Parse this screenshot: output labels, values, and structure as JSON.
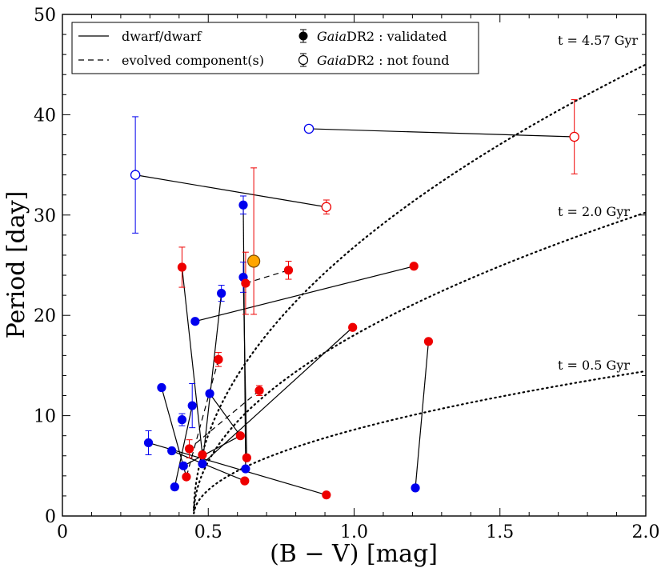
{
  "chart_data": {
    "type": "scatter",
    "xlabel": "(B − V) [mag]",
    "ylabel": "Period [day]",
    "xlim": [
      0,
      2.0
    ],
    "ylim": [
      0,
      50
    ],
    "xticks": [
      "0",
      "0.5",
      "1.0",
      "1.5",
      "2.0"
    ],
    "yticks": [
      "0",
      "10",
      "20",
      "30",
      "40",
      "50"
    ],
    "grid": false,
    "legend": {
      "placement": "top-left",
      "entries": [
        {
          "style": "solid",
          "label": "dwarf/dwarf"
        },
        {
          "style": "dashed",
          "label": "evolved component(s)"
        },
        {
          "style": "filled-marker",
          "italic": "Gaia",
          "label": "DR2 : validated"
        },
        {
          "style": "open-marker",
          "italic": "Gaia",
          "label": "DR2 : not found"
        }
      ]
    },
    "colors": {
      "blue": "#0000ee",
      "red": "#ee0000",
      "sun_fill": "#ffa500",
      "sun_edge": "#7a4a00"
    },
    "isochrones": [
      {
        "label": "t = 4.57 Gyr",
        "k": 36.15
      },
      {
        "label": "t = 2.0 Gyr",
        "k": 24.3
      },
      {
        "label": "t = 0.5 Gyr",
        "k": 11.6
      }
    ],
    "points": [
      {
        "id": 0,
        "x": 0.25,
        "y": 34.0,
        "color": "blue",
        "open": true,
        "err": 5.8
      },
      {
        "id": 1,
        "x": 0.905,
        "y": 30.8,
        "color": "red",
        "open": true,
        "err": 0.7
      },
      {
        "id": 2,
        "x": 0.845,
        "y": 38.6,
        "color": "blue",
        "open": true,
        "err": 0
      },
      {
        "id": 3,
        "x": 1.755,
        "y": 37.8,
        "color": "red",
        "open": true,
        "err": 3.7
      },
      {
        "id": 4,
        "x": 0.62,
        "y": 31.0,
        "color": "blue",
        "open": false,
        "err": 0.9
      },
      {
        "id": 5,
        "x": 0.628,
        "y": 4.7,
        "color": "blue",
        "open": false,
        "err": 0
      },
      {
        "id": 6,
        "x": 0.62,
        "y": 23.8,
        "color": "blue",
        "open": false,
        "err": 1.5
      },
      {
        "id": 7,
        "x": 0.632,
        "y": 5.8,
        "color": "red",
        "open": false,
        "err": 0
      },
      {
        "id": 8,
        "x": 0.628,
        "y": 23.2,
        "color": "red",
        "open": false,
        "err": 3.1
      },
      {
        "id": 9,
        "x": 0.775,
        "y": 24.5,
        "color": "red",
        "open": false,
        "err": 0.9
      },
      {
        "id": 10,
        "x": 0.545,
        "y": 22.2,
        "color": "blue",
        "open": false,
        "err": 0.8
      },
      {
        "id": 11,
        "x": 0.455,
        "y": 19.4,
        "color": "blue",
        "open": false,
        "err": 0
      },
      {
        "id": 12,
        "x": 1.205,
        "y": 24.9,
        "color": "red",
        "open": false,
        "err": 0
      },
      {
        "id": 13,
        "x": 0.41,
        "y": 24.8,
        "color": "red",
        "open": false,
        "err": 2.0
      },
      {
        "id": 14,
        "x": 0.41,
        "y": 9.6,
        "color": "blue",
        "open": false,
        "err": 0.6
      },
      {
        "id": 15,
        "x": 0.535,
        "y": 15.6,
        "color": "red",
        "open": false,
        "err": 0.7
      },
      {
        "id": 16,
        "x": 0.48,
        "y": 6.1,
        "color": "red",
        "open": false,
        "err": 0
      },
      {
        "id": 17,
        "x": 0.995,
        "y": 18.8,
        "color": "red",
        "open": false,
        "err": 0
      },
      {
        "id": 18,
        "x": 0.48,
        "y": 5.2,
        "color": "blue",
        "open": false,
        "err": 0
      },
      {
        "id": 19,
        "x": 1.255,
        "y": 17.4,
        "color": "red",
        "open": false,
        "err": 0
      },
      {
        "id": 20,
        "x": 1.21,
        "y": 2.8,
        "color": "blue",
        "open": false,
        "err": 0
      },
      {
        "id": 21,
        "x": 0.34,
        "y": 12.8,
        "color": "blue",
        "open": false,
        "err": 0
      },
      {
        "id": 22,
        "x": 0.425,
        "y": 3.9,
        "color": "red",
        "open": false,
        "err": 0
      },
      {
        "id": 23,
        "x": 0.505,
        "y": 12.2,
        "color": "blue",
        "open": false,
        "err": 0
      },
      {
        "id": 24,
        "x": 0.61,
        "y": 8.0,
        "color": "red",
        "open": false,
        "err": 0
      },
      {
        "id": 25,
        "x": 0.445,
        "y": 11.0,
        "color": "blue",
        "open": false,
        "err": 2.2
      },
      {
        "id": 26,
        "x": 0.385,
        "y": 2.9,
        "color": "blue",
        "open": false,
        "err": 0
      },
      {
        "id": 27,
        "x": 0.675,
        "y": 12.5,
        "color": "red",
        "open": false,
        "err": 0.5
      },
      {
        "id": 28,
        "x": 0.435,
        "y": 6.7,
        "color": "red",
        "open": false,
        "err": 0.9
      },
      {
        "id": 29,
        "x": 0.415,
        "y": 5.0,
        "color": "blue",
        "open": false,
        "err": 0
      },
      {
        "id": 30,
        "x": 0.295,
        "y": 7.3,
        "color": "blue",
        "open": false,
        "err": 1.2
      },
      {
        "id": 31,
        "x": 0.905,
        "y": 2.1,
        "color": "red",
        "open": false,
        "err": 0
      },
      {
        "id": 32,
        "x": 0.375,
        "y": 6.5,
        "color": "blue",
        "open": false,
        "err": 0
      },
      {
        "id": 33,
        "x": 0.625,
        "y": 3.5,
        "color": "red",
        "open": false,
        "err": 0
      }
    ],
    "sun": {
      "x": 0.656,
      "y": 25.4,
      "err_low": 5.3,
      "err_high": 9.3
    },
    "pairs": [
      {
        "a": 0,
        "b": 1,
        "style": "solid"
      },
      {
        "a": 2,
        "b": 3,
        "style": "solid"
      },
      {
        "a": 4,
        "b": 5,
        "style": "solid"
      },
      {
        "a": 6,
        "b": 7,
        "style": "solid"
      },
      {
        "a": 8,
        "b": 9,
        "style": "dashed"
      },
      {
        "a": 11,
        "b": 12,
        "style": "solid"
      },
      {
        "a": 13,
        "b": 16,
        "style": "solid"
      },
      {
        "a": 10,
        "b": 18,
        "style": "solid"
      },
      {
        "a": 17,
        "b": 18,
        "style": "solid"
      },
      {
        "a": 19,
        "b": 20,
        "style": "solid"
      },
      {
        "a": 21,
        "b": 22,
        "style": "solid"
      },
      {
        "a": 15,
        "b": 22,
        "style": "dashed"
      },
      {
        "a": 23,
        "b": 24,
        "style": "solid"
      },
      {
        "a": 25,
        "b": 26,
        "style": "solid"
      },
      {
        "a": 27,
        "b": 28,
        "style": "dashed"
      },
      {
        "a": 29,
        "b": 24,
        "style": "solid"
      },
      {
        "a": 30,
        "b": 31,
        "style": "solid"
      },
      {
        "a": 32,
        "b": 33,
        "style": "solid"
      }
    ]
  }
}
